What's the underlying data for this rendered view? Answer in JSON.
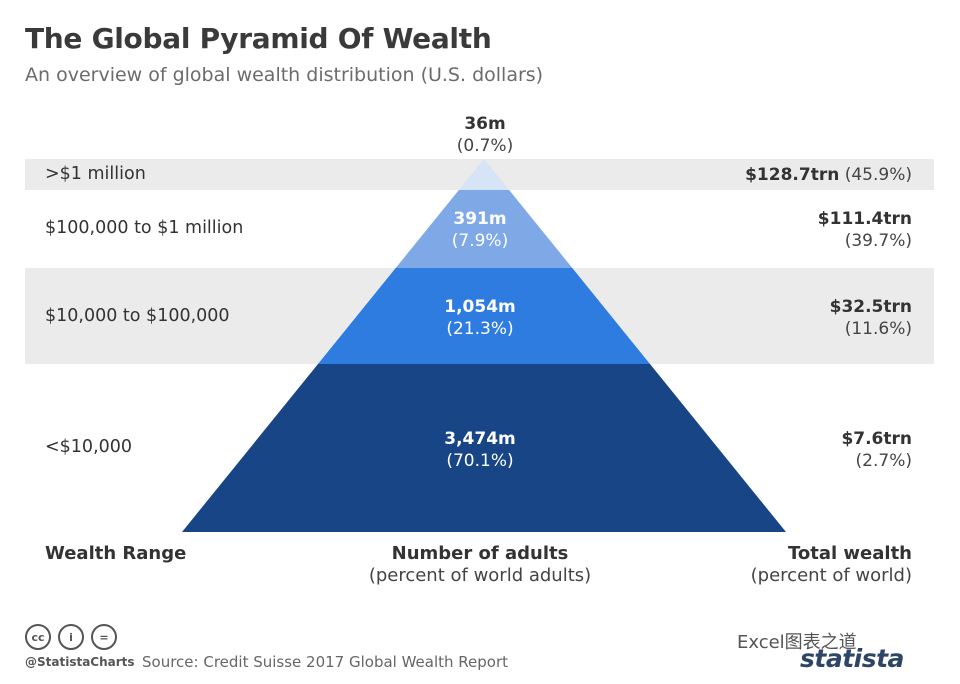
{
  "header": {
    "title": "The Global Pyramid Of Wealth",
    "subtitle": "An overview of global wealth distribution (U.S. dollars)"
  },
  "chart_data": {
    "type": "pyramid",
    "tiers": [
      {
        "range": ">$1 million",
        "adults": "36m",
        "adults_pct": "(0.7%)",
        "wealth": "$128.7trn",
        "wealth_pct": "(45.9%)",
        "color": "#d6e4f7"
      },
      {
        "range": "$100,000 to $1 million",
        "adults": "391m",
        "adults_pct": "(7.9%)",
        "wealth": "$111.4trn",
        "wealth_pct": "(39.7%)",
        "color": "#7fa9e6"
      },
      {
        "range": "$10,000 to $100,000",
        "adults": "1,054m",
        "adults_pct": "(21.3%)",
        "wealth": "$32.5trn",
        "wealth_pct": "(11.6%)",
        "color": "#2f7ce0"
      },
      {
        "range": "<$10,000",
        "adults": "3,474m",
        "adults_pct": "(70.1%)",
        "wealth": "$7.6trn",
        "wealth_pct": "(2.7%)",
        "color": "#174585"
      }
    ],
    "columns": {
      "range_label": "Wealth Range",
      "adults_label": "Number of adults",
      "adults_sub": "(percent of world adults)",
      "wealth_label": "Total wealth",
      "wealth_sub": "(percent of world)"
    }
  },
  "footer": {
    "cc_icons": [
      "cc",
      "i",
      "="
    ],
    "handle": "@StatistaCharts",
    "source": "Source: Credit Suisse 2017 Global Wealth Report",
    "watermark": "Excel图表之道",
    "brand": "statista"
  }
}
